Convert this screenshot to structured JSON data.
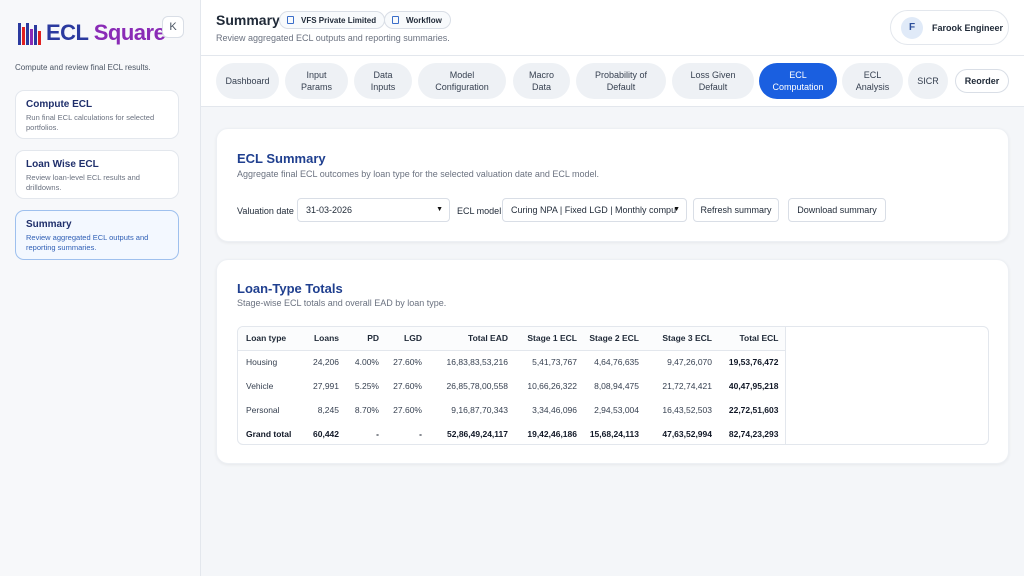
{
  "brand": {
    "name_part1": "ECL",
    "name_part2": "Square",
    "colors": {
      "primary": "#2b3a9f",
      "secondary": "#8a2bb6",
      "accent": "#1a5fe0"
    }
  },
  "sidebar": {
    "collapse_label": "K",
    "subtitle": "Compute and review final ECL results.",
    "items": [
      {
        "title": "Compute ECL",
        "desc": "Run final ECL calculations for selected portfolios."
      },
      {
        "title": "Loan Wise ECL",
        "desc": "Review loan-level ECL results and drilldowns."
      },
      {
        "title": "Summary",
        "desc": "Review aggregated ECL outputs and reporting summaries."
      }
    ]
  },
  "header": {
    "title": "Summary",
    "company": "VFS Private Limited",
    "workflow": "Workflow",
    "subtitle": "Review aggregated ECL outputs and reporting summaries.",
    "user_initial": "F",
    "user_name": "Farook Engineer"
  },
  "tabs": [
    {
      "line1": "Dashboard",
      "line2": ""
    },
    {
      "line1": "Input",
      "line2": "Params"
    },
    {
      "line1": "Data",
      "line2": "Inputs"
    },
    {
      "line1": "Model",
      "line2": "Configuration"
    },
    {
      "line1": "Macro",
      "line2": "Data"
    },
    {
      "line1": "Probability of",
      "line2": "Default"
    },
    {
      "line1": "Loss Given",
      "line2": "Default"
    },
    {
      "line1": "ECL",
      "line2": "Computation"
    },
    {
      "line1": "ECL",
      "line2": "Analysis"
    },
    {
      "line1": "SICR",
      "line2": ""
    }
  ],
  "reorder_label": "Reorder",
  "summary_card": {
    "title": "ECL Summary",
    "subtitle": "Aggregate final ECL outcomes by loan type for the selected valuation date and ECL model.",
    "valuation_label": "Valuation date",
    "valuation_value": "31-03-2026",
    "model_label": "ECL model",
    "model_value": "Curing NPA | Fixed LGD | Monthly compu",
    "refresh_label": "Refresh summary",
    "download_label": "Download summary"
  },
  "totals_card": {
    "title": "Loan-Type Totals",
    "subtitle": "Stage-wise ECL totals and overall EAD by loan type.",
    "headers": [
      "Loan type",
      "Loans",
      "PD",
      "LGD",
      "Total EAD",
      "Stage 1 ECL",
      "Stage 2 ECL",
      "Stage 3 ECL",
      "Total ECL"
    ],
    "rows": [
      [
        "Housing",
        "24,206",
        "4.00%",
        "27.60%",
        "16,83,83,53,216",
        "5,41,73,767",
        "4,64,76,635",
        "9,47,26,070",
        "19,53,76,472"
      ],
      [
        "Vehicle",
        "27,991",
        "5.25%",
        "27.60%",
        "26,85,78,00,558",
        "10,66,26,322",
        "8,08,94,475",
        "21,72,74,421",
        "40,47,95,218"
      ],
      [
        "Personal",
        "8,245",
        "8.70%",
        "27.60%",
        "9,16,87,70,343",
        "3,34,46,096",
        "2,94,53,004",
        "16,43,52,503",
        "22,72,51,603"
      ],
      [
        "Grand total",
        "60,442",
        "-",
        "-",
        "52,86,49,24,117",
        "19,42,46,186",
        "15,68,24,113",
        "47,63,52,994",
        "82,74,23,293"
      ]
    ]
  }
}
